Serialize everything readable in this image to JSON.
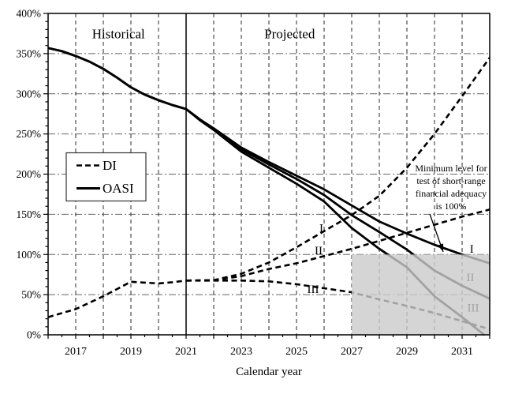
{
  "chart_data": {
    "type": "line",
    "title": "",
    "xlabel": "Calendar year",
    "x_range": [
      2016,
      2032
    ],
    "y_range": [
      0,
      400
    ],
    "y_major_ticks": [
      0,
      50,
      100,
      150,
      200,
      250,
      300,
      350,
      400
    ],
    "y_tick_labels": [
      "0%",
      "50%",
      "100%",
      "150%",
      "200%",
      "250%",
      "300%",
      "350%",
      "400%"
    ],
    "y_minor_step": 10,
    "x_labeled_years": [
      2017,
      2019,
      2021,
      2023,
      2025,
      2027,
      2029,
      2031
    ],
    "x_grid_years": [
      2017,
      2018,
      2019,
      2020,
      2022,
      2023,
      2024,
      2025,
      2026,
      2027,
      2028,
      2029,
      2030,
      2031
    ],
    "historical_projected_divider_year": 2021,
    "grid": true,
    "legend_position": "left-middle",
    "region_labels": [
      {
        "text": "Historical",
        "x_year": 2018.55
      },
      {
        "text": "Projected",
        "x_year": 2024.75
      }
    ],
    "shaded_region": {
      "x0_year": 2027,
      "x1_year": 2032,
      "y0": 0,
      "y1": 100,
      "color": "#cbcbcb"
    },
    "legend": [
      {
        "label": "DI",
        "style": "dashed"
      },
      {
        "label": "OASI",
        "style": "solid"
      }
    ],
    "annotation": {
      "lines": [
        "Minimum level for",
        "test of short-range",
        "financial adequacy",
        "is 100%"
      ]
    },
    "line_color": "#000000",
    "series": [
      {
        "name": "OASI historical",
        "style": "solid",
        "width": 3,
        "x": [
          2016,
          2016.5,
          2017,
          2017.5,
          2018,
          2018.5,
          2019,
          2019.5,
          2020,
          2020.5,
          2021
        ],
        "y": [
          357,
          353,
          347,
          340,
          331,
          320,
          308,
          299,
          292,
          286,
          281
        ]
      },
      {
        "name": "OASI I",
        "style": "solid",
        "width": 2.8,
        "x": [
          2021,
          2021.5,
          2022,
          2023,
          2024,
          2025,
          2026,
          2027,
          2028,
          2029,
          2030,
          2031,
          2032
        ],
        "y": [
          281,
          268,
          257,
          233,
          215,
          198,
          181,
          161,
          141,
          126,
          112,
          100,
          89
        ]
      },
      {
        "name": "OASI II",
        "style": "solid",
        "width": 2.8,
        "x": [
          2021,
          2021.5,
          2022,
          2023,
          2024,
          2025,
          2026,
          2027,
          2028,
          2029,
          2030,
          2031,
          2032
        ],
        "y": [
          281,
          268,
          256,
          231,
          212,
          194,
          174,
          149,
          128,
          106,
          80,
          61,
          45
        ]
      },
      {
        "name": "OASI III",
        "style": "solid",
        "width": 2.8,
        "x": [
          2021,
          2021.5,
          2022,
          2023,
          2024,
          2025,
          2026,
          2027,
          2028,
          2029,
          2030,
          2031,
          2031.8
        ],
        "y": [
          281,
          267,
          255,
          228,
          208,
          188,
          166,
          133,
          107,
          84,
          48,
          22,
          0
        ]
      },
      {
        "name": "DI historical",
        "style": "dashed",
        "width": 2.6,
        "x": [
          2016,
          2016.5,
          2017,
          2017.5,
          2018,
          2018.5,
          2019,
          2019.5,
          2020,
          2020.5,
          2021
        ],
        "y": [
          22,
          27,
          32,
          40,
          48,
          57,
          66,
          65,
          64,
          65.5,
          67.5
        ]
      },
      {
        "name": "DI I",
        "style": "dashed",
        "width": 2.6,
        "x": [
          2021,
          2022,
          2023,
          2024,
          2025,
          2026,
          2027,
          2028,
          2029,
          2030,
          2031,
          2032
        ],
        "y": [
          67.5,
          68,
          76,
          90,
          109,
          129,
          149,
          173,
          208,
          250,
          297,
          345
        ]
      },
      {
        "name": "DI II",
        "style": "dashed",
        "width": 2.6,
        "x": [
          2021,
          2022,
          2023,
          2024,
          2025,
          2026,
          2027,
          2028,
          2029,
          2030,
          2031,
          2032
        ],
        "y": [
          67.5,
          68,
          73,
          82,
          89,
          98,
          107,
          117,
          127,
          137,
          147,
          156
        ]
      },
      {
        "name": "DI III",
        "style": "dashed",
        "width": 2.6,
        "x": [
          2021,
          2022,
          2023,
          2024,
          2025,
          2026,
          2027,
          2028,
          2029,
          2030,
          2031,
          2032
        ],
        "y": [
          67.5,
          67.5,
          67.5,
          66.5,
          63,
          58,
          53,
          44,
          36,
          27,
          17,
          7
        ]
      }
    ],
    "line_labels": [
      {
        "text": "I",
        "group": "DI",
        "x_year": 2025.9,
        "y": 132
      },
      {
        "text": "II",
        "group": "DI",
        "x_year": 2025.8,
        "y": 104
      },
      {
        "text": "III",
        "group": "DI",
        "x_year": 2025.6,
        "y": 56
      },
      {
        "text": "I",
        "group": "OASI",
        "x_year": 2031.35,
        "y": 106
      },
      {
        "text": "II",
        "group": "OASI",
        "x_year": 2031.3,
        "y": 71
      },
      {
        "text": "III",
        "group": "OASI",
        "x_year": 2031.4,
        "y": 33
      }
    ]
  }
}
